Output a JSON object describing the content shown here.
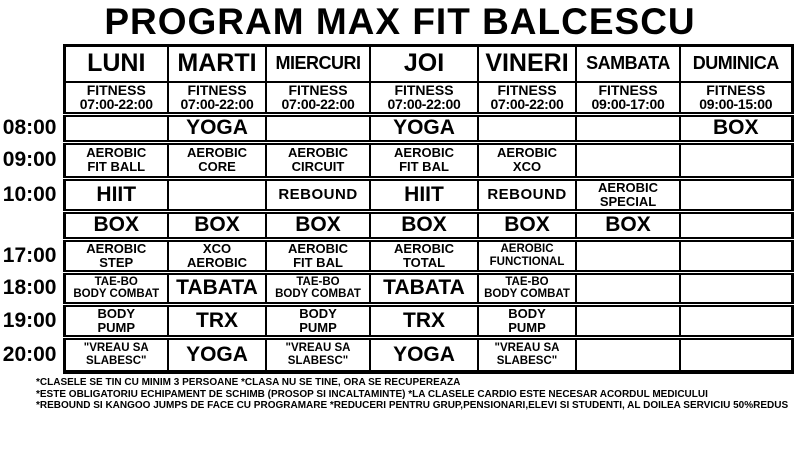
{
  "title": "PROGRAM MAX FIT BALCESCU",
  "schedule": {
    "days": [
      "LUNI",
      "MARTI",
      "MIERCURI",
      "JOI",
      "VINERI",
      "SAMBATA",
      "DUMINICA"
    ],
    "fitness_label": "FITNESS",
    "fitness_hours": [
      "07:00-22:00",
      "07:00-22:00",
      "07:00-22:00",
      "07:00-22:00",
      "07:00-22:00",
      "09:00-17:00",
      "09:00-15:00"
    ],
    "rows": [
      {
        "time": "08:00",
        "cells": [
          "",
          "YOGA",
          "",
          "YOGA",
          "",
          "",
          "BOX"
        ]
      },
      {
        "time": "09:00",
        "cells": [
          "AEROBIC\nFIT BALL",
          "AEROBIC\nCORE",
          "AEROBIC\nCIRCUIT",
          "AEROBIC\nFIT BAL",
          "AEROBIC\nXCO",
          "",
          ""
        ]
      },
      {
        "time": "10:00",
        "cells": [
          "HIIT",
          "",
          "REBOUND",
          "HIIT",
          "REBOUND",
          "AEROBIC\nSPECIAL",
          ""
        ]
      },
      {
        "time": "",
        "cells": [
          "BOX",
          "BOX",
          "BOX",
          "BOX",
          "BOX",
          "BOX",
          ""
        ]
      },
      {
        "time": "17:00",
        "cells": [
          "AEROBIC\nSTEP",
          "XCO\nAEROBIC",
          "AEROBIC\nFIT BAL",
          "AEROBIC\nTOTAL",
          "AEROBIC\nFUNCTIONAL",
          "",
          ""
        ]
      },
      {
        "time": "18:00",
        "cells": [
          "TAE-BO\nBODY COMBAT",
          "TABATA",
          "TAE-BO\nBODY COMBAT",
          "TABATA",
          "TAE-BO\nBODY COMBAT",
          "",
          ""
        ]
      },
      {
        "time": "19:00",
        "cells": [
          "BODY\nPUMP",
          "TRX",
          "BODY\nPUMP",
          "TRX",
          "BODY\nPUMP",
          "",
          ""
        ]
      },
      {
        "time": "20:00",
        "cells": [
          "\"VREAU SA\nSLABESC\"",
          "YOGA",
          "\"VREAU SA\nSLABESC\"",
          "YOGA",
          "\"VREAU SA\nSLABESC\"",
          "",
          ""
        ]
      }
    ]
  },
  "footnotes": [
    "*CLASELE SE TIN CU MINIM 3 PERSOANE *CLASA NU SE TINE, ORA SE RECUPEREAZA",
    "*ESTE OBLIGATORIU ECHIPAMENT DE SCHIMB (PROSOP SI INCALTAMINTE) *LA CLASELE CARDIO ESTE NECESAR ACORDUL MEDICULUI",
    "*REBOUND SI KANGOO JUMPS DE FACE CU PROGRAMARE  *REDUCERI PENTRU GRUP,PENSIONARI,ELEVI SI STUDENTI, AL DOILEA SERVICIU 50%REDUS"
  ]
}
